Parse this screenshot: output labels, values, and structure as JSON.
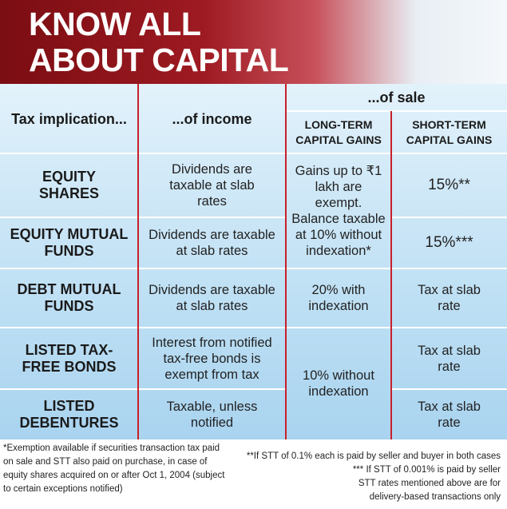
{
  "header": {
    "title": "KNOW ALL ABOUT CAPITAL GAINS"
  },
  "table": {
    "columns": {
      "implication": "Tax implication...",
      "income": "...of income",
      "sale": "...of sale",
      "long_term": "LONG-TERM CAPITAL GAINS",
      "short_term": "SHORT-TERM CAPITAL GAINS"
    },
    "rows": [
      {
        "asset": "EQUITY SHARES",
        "income": "Dividends are taxable at slab rates",
        "long_term": "Gains up to ₹1 lakh are exempt. Balance taxable at 10% without indexation*",
        "short_term": "15%**"
      },
      {
        "asset": "EQUITY MUTUAL FUNDS",
        "income": "Dividends are taxable at slab rates",
        "short_term": "15%***"
      },
      {
        "asset": "DEBT MUTUAL FUNDS",
        "income": "Dividends are taxable at slab rates",
        "long_term": "20% with indexation",
        "short_term": "Tax at slab rate"
      },
      {
        "asset": "LISTED TAX-FREE BONDS",
        "income": "Interest from notified tax-free bonds is exempt from tax",
        "long_term": "10% without indexation",
        "short_term": "Tax at slab rate"
      },
      {
        "asset": "LISTED DEBENTURES",
        "income": "Taxable, unless notified",
        "short_term": "Tax at slab rate"
      }
    ]
  },
  "footnotes": {
    "left": "*Exemption available if securities transaction tax paid on sale and STT also paid on purchase, in case of equity shares acquired on or after Oct 1, 2004 (subject to certain exceptions notified)",
    "right": [
      "**If STT of 0.1% each is paid by seller and buyer in both cases",
      "*** If STT of 0.001% is paid by seller",
      "STT rates mentioned above are for delivery-based transactions only"
    ]
  }
}
